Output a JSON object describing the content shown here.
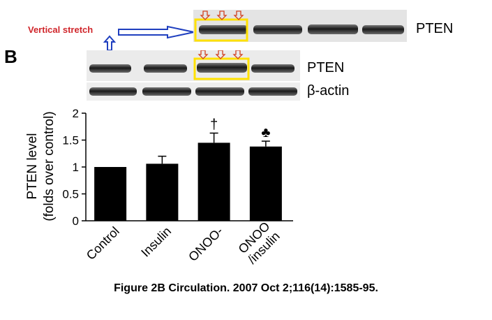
{
  "panel_label": "B",
  "annotation": {
    "text": "Vertical stretch"
  },
  "blots": {
    "top_label": "PTEN",
    "pten_label": "PTEN",
    "actin_label": "β-actin"
  },
  "caption": "Figure 2B Circulation. 2007 Oct 2;116(14):1585-95.",
  "colors": {
    "bar": "#000000",
    "highlight_box": "#ffe100",
    "arrow": "#d04020",
    "annotation_arrow": "#1f3fbf",
    "annotation_text": "#d0262b"
  },
  "chart_data": {
    "type": "bar",
    "categories": [
      "Control",
      "Insulin",
      "ONOO-",
      "ONOO-/insulin"
    ],
    "category_display": [
      [
        "Control"
      ],
      [
        "Insulin"
      ],
      [
        "ONOO-"
      ],
      [
        "ONOO",
        "/insulin"
      ]
    ],
    "values": [
      1.0,
      1.06,
      1.45,
      1.38
    ],
    "errors": [
      0,
      0.14,
      0.18,
      0.1
    ],
    "markers": [
      "",
      "",
      "†",
      "♣"
    ],
    "ylabel_lines": [
      "PTEN level",
      "(folds over control)"
    ],
    "xlabel": "",
    "ylim": [
      0,
      2
    ],
    "yticks": [
      "0",
      "0.5",
      "1",
      "1.5",
      "2"
    ],
    "grid": false
  }
}
